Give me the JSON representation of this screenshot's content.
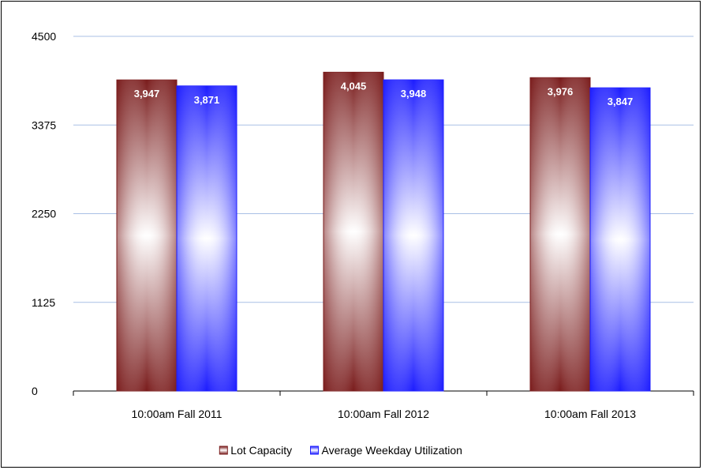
{
  "chart_data": {
    "type": "bar",
    "categories": [
      "10:00am Fall 2011",
      "10:00am Fall 2012",
      "10:00am Fall 2013"
    ],
    "series": [
      {
        "name": "Lot Capacity",
        "values": [
          3947,
          4045,
          3976
        ],
        "labels": [
          "3,947",
          "4,045",
          "3,976"
        ],
        "color": "#7a1c1c"
      },
      {
        "name": "Average Weekday Utilization",
        "values": [
          3871,
          3948,
          3847
        ],
        "labels": [
          "3,871",
          "3,948",
          "3,847"
        ],
        "color": "#1c1cff"
      }
    ],
    "yticks": [
      0,
      1125,
      2250,
      3375,
      4500
    ],
    "ylim": [
      0,
      4500
    ],
    "grid": true,
    "legend": "bottom"
  }
}
